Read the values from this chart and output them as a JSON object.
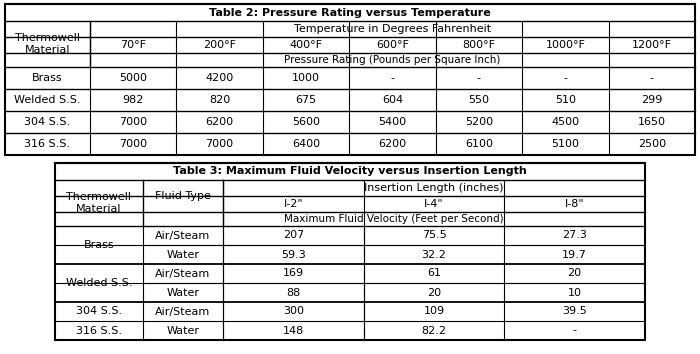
{
  "table2": {
    "title": "Table 2: Pressure Rating versus Temperature",
    "header_temp": "Temperature in Degrees Fahrenheit",
    "header_psi": "Pressure Rating (Pounds per Square Inch)",
    "col_header": "Thermowell\nMaterial",
    "temps": [
      "70°F",
      "200°F",
      "400°F",
      "600°F",
      "800°F",
      "1000°F",
      "1200°F"
    ],
    "rows": [
      [
        "Brass",
        "5000",
        "4200",
        "1000",
        "-",
        "-",
        "-",
        "-"
      ],
      [
        "Welded S.S.",
        "982",
        "820",
        "675",
        "604",
        "550",
        "510",
        "299"
      ],
      [
        "304 S.S.",
        "7000",
        "6200",
        "5600",
        "5400",
        "5200",
        "4500",
        "1650"
      ],
      [
        "316 S.S.",
        "7000",
        "7000",
        "6400",
        "6200",
        "6100",
        "5100",
        "2500"
      ]
    ]
  },
  "table3": {
    "title": "Table 3: Maximum Fluid Velocity versus Insertion Length",
    "header_insertion": "Insertion Length (inches)",
    "header_velocity": "Maximum Fluid Velocity (Feet per Second)",
    "col_thermowell": "Thermowell\nMaterial",
    "col_fluid": "Fluid Type",
    "insertion_lengths": [
      "I-2\"",
      "I-4\"",
      "I-8\""
    ],
    "rows": [
      [
        "Brass",
        "Air/Steam",
        "207",
        "75.5",
        "27.3"
      ],
      [
        "Brass",
        "Water",
        "59.3",
        "32.2",
        "19.7"
      ],
      [
        "Welded S.S.",
        "Air/Steam",
        "169",
        "61",
        "20"
      ],
      [
        "Welded S.S.",
        "Water",
        "88",
        "20",
        "10"
      ],
      [
        "304 S.S.",
        "Air/Steam",
        "300",
        "109",
        "39.5"
      ],
      [
        "316 S.S.",
        "Water",
        "148",
        "82.2",
        "-"
      ]
    ]
  }
}
